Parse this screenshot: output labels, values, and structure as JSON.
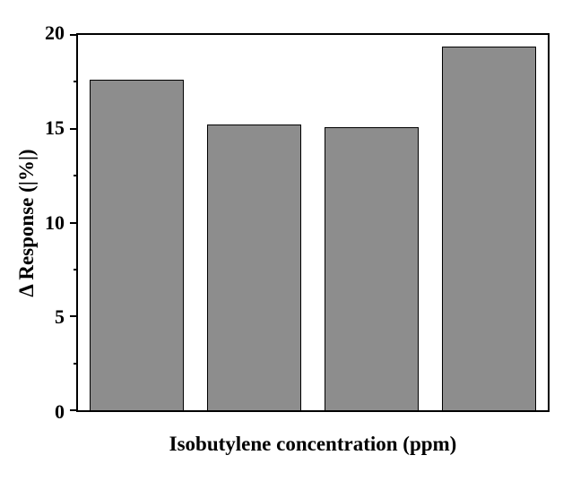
{
  "figure": {
    "background": "#ffffff",
    "axis_color": "#000000"
  },
  "chart_data": {
    "type": "bar",
    "title": "",
    "xlabel": "Isobutylene concentration （ppm）",
    "ylabel": "Δ Response （|%|）",
    "categories": [
      "",
      "",
      "",
      ""
    ],
    "values": [
      17.6,
      15.25,
      15.1,
      19.4
    ],
    "ylim": [
      0,
      20
    ],
    "yticks": [
      0,
      5,
      10,
      15,
      20
    ],
    "ytick_labels": [
      "0",
      "5",
      "10",
      "15",
      "20"
    ],
    "minor_yticks": [
      2.5,
      7.5,
      12.5,
      17.5
    ],
    "xtick_labels": [],
    "bar_fill": "#8d8d8d",
    "bar_edge": "#000000",
    "grid": false,
    "legend_position": "none",
    "frame": "full-box"
  }
}
